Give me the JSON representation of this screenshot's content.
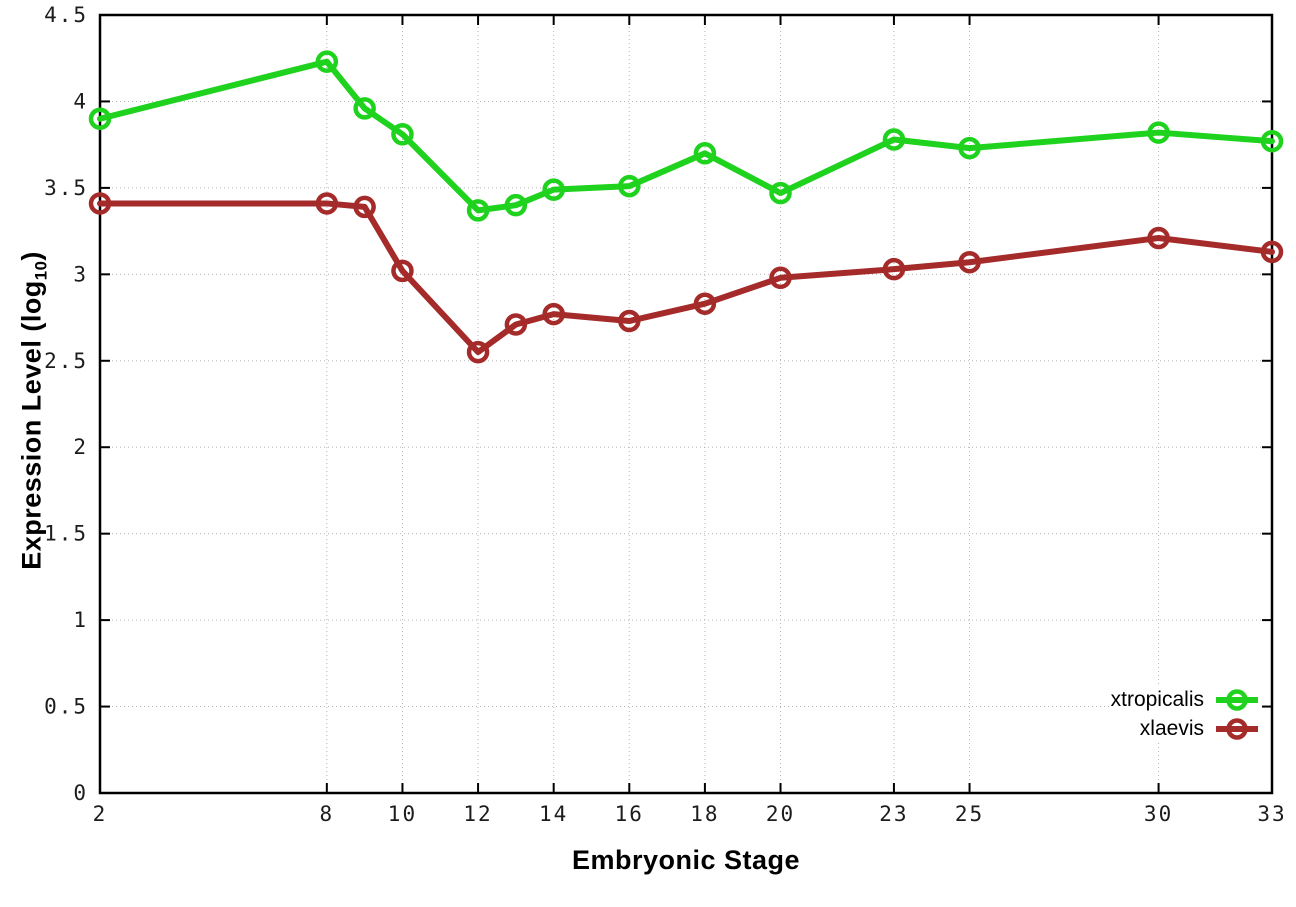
{
  "labels": {
    "xlabel": "Embryonic Stage",
    "ylabel_prefix": "Expression Level (log",
    "ylabel_sub": "10",
    "ylabel_suffix": ")"
  },
  "colors": {
    "xtropicalis": "#1ed21e",
    "xlaevis": "#a52a2a",
    "grid": "#b5b5b5",
    "axis": "#000000",
    "background": "#ffffff",
    "text": "#1c1c1c"
  },
  "chart_data": {
    "type": "line",
    "title": "",
    "xlabel": "Embryonic Stage",
    "ylabel": "Expression Level (log10)",
    "x": [
      2,
      8,
      9,
      10,
      12,
      13,
      14,
      16,
      18,
      20,
      23,
      25,
      30,
      33
    ],
    "series": [
      {
        "name": "xtropicalis",
        "color": "#1ed21e",
        "values": [
          3.9,
          4.23,
          3.96,
          3.81,
          3.37,
          3.4,
          3.49,
          3.51,
          3.7,
          3.47,
          3.78,
          3.73,
          3.82,
          3.77
        ]
      },
      {
        "name": "xlaevis",
        "color": "#a52a2a",
        "values": [
          3.41,
          3.41,
          3.39,
          3.02,
          2.55,
          2.71,
          2.77,
          2.73,
          2.83,
          2.98,
          3.03,
          3.07,
          3.21,
          3.13
        ]
      }
    ],
    "xticks": [
      2,
      8,
      10,
      12,
      14,
      16,
      18,
      20,
      23,
      25,
      30,
      33
    ],
    "yticks": [
      0,
      0.5,
      1,
      1.5,
      2,
      2.5,
      3,
      3.5,
      4,
      4.5
    ],
    "xlim": [
      2,
      33
    ],
    "ylim": [
      0,
      4.5
    ],
    "grid": true,
    "legend_position": "inside-bottom-right",
    "marker": "open-circle"
  }
}
